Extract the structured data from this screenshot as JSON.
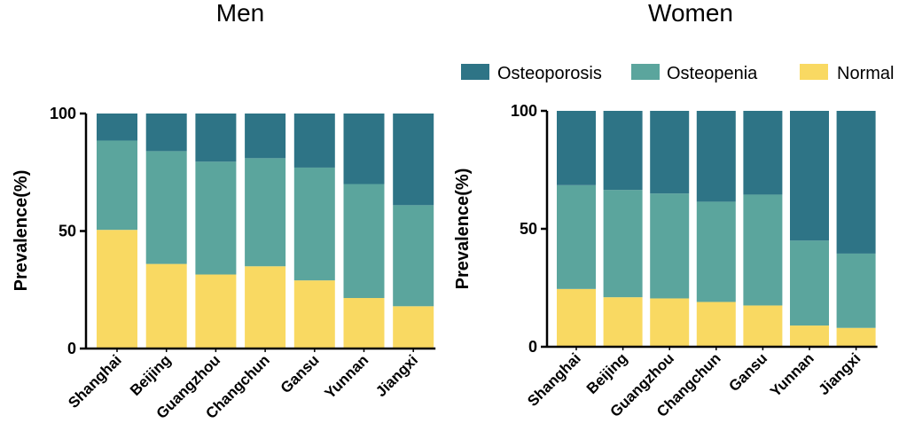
{
  "colors": {
    "Osteoporosis": "#2e7486",
    "Osteopenia": "#5ba59d",
    "Normal": "#f9d962"
  },
  "legend": {
    "items": [
      "Osteoporosis",
      "Osteopenia",
      "Normal"
    ]
  },
  "chart_data": [
    {
      "type": "bar",
      "stacked": true,
      "title": "Men",
      "xlabel": "",
      "ylabel": "Prevalence(%)",
      "ylim": [
        0,
        100
      ],
      "yticks": [
        0,
        50,
        100
      ],
      "categories": [
        "Shanghai",
        "Beijing",
        "Guangzhou",
        "Changchun",
        "Gansu",
        "Yunnan",
        "Jiangxi"
      ],
      "series": [
        {
          "name": "Normal",
          "values": [
            50.5,
            36,
            31.5,
            35,
            29,
            21.5,
            18
          ]
        },
        {
          "name": "Osteopenia",
          "values": [
            38,
            48,
            48,
            46,
            48,
            48.5,
            43
          ]
        },
        {
          "name": "Osteoporosis",
          "values": [
            11.5,
            16,
            20.5,
            19,
            23,
            30,
            39
          ]
        }
      ]
    },
    {
      "type": "bar",
      "stacked": true,
      "title": "Women",
      "xlabel": "",
      "ylabel": "Prevalence(%)",
      "ylim": [
        0,
        100
      ],
      "yticks": [
        0,
        50,
        100
      ],
      "categories": [
        "Shanghai",
        "Beijing",
        "Guangzhou",
        "Changchun",
        "Gansu",
        "Yunnan",
        "Jiangxi"
      ],
      "series": [
        {
          "name": "Normal",
          "values": [
            24.5,
            21,
            20.5,
            19,
            17.5,
            9,
            8
          ]
        },
        {
          "name": "Osteopenia",
          "values": [
            44,
            45.5,
            44.5,
            42.5,
            47,
            36,
            31.5
          ]
        },
        {
          "name": "Osteoporosis",
          "values": [
            31.5,
            33.5,
            35,
            38.5,
            35.5,
            55,
            60.5
          ]
        }
      ]
    }
  ]
}
